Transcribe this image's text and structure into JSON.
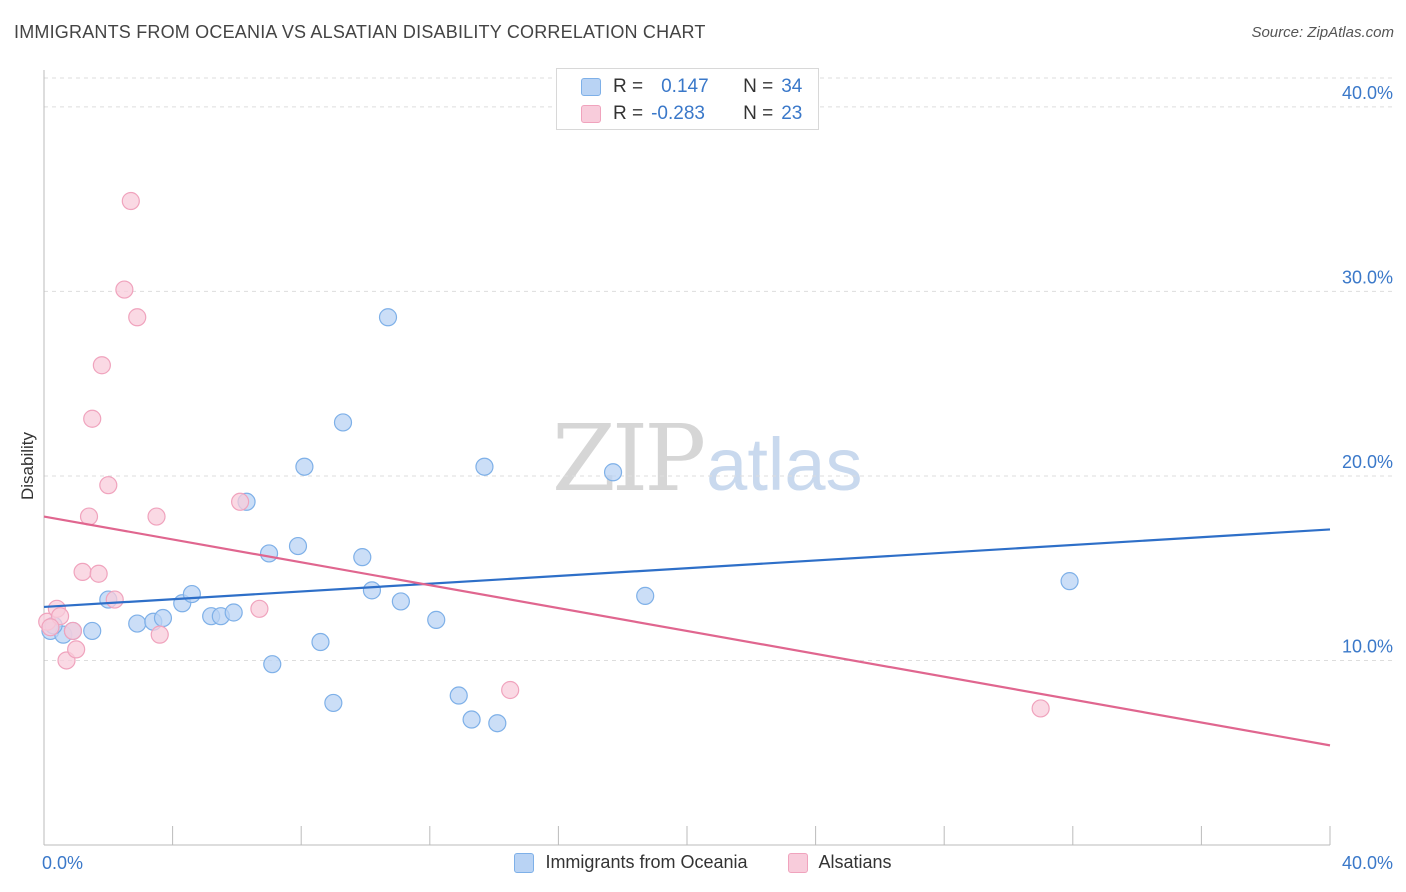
{
  "header": {
    "title": "IMMIGRANTS FROM OCEANIA VS ALSATIAN DISABILITY CORRELATION CHART",
    "source": "Source: ZipAtlas.com"
  },
  "legend": {
    "rows": [
      {
        "r_label": "R =",
        "r_value": "0.147",
        "n_label": "N =",
        "n_value": "34"
      },
      {
        "r_label": "R =",
        "r_value": "-0.283",
        "n_label": "N =",
        "n_value": "23"
      }
    ]
  },
  "watermark": {
    "zip": "ZIP",
    "atlas": "atlas"
  },
  "chart_data": {
    "type": "scatter",
    "xlabel": "",
    "ylabel": "Disability",
    "xlim": [
      0,
      40
    ],
    "ylim": [
      0,
      42
    ],
    "x_tick_labels": [
      "0.0%",
      "40.0%"
    ],
    "y_ticks": [
      10,
      20,
      30,
      40
    ],
    "y_tick_labels": [
      "10.0%",
      "20.0%",
      "30.0%",
      "40.0%"
    ],
    "grid": "horizontal dashed",
    "legend_position": "top-center",
    "series": [
      {
        "name": "Immigrants from Oceania",
        "color": "#7eb0e8",
        "fill": "#b9d3f4",
        "line_color": "#2e6fc8",
        "trend": {
          "x": [
            0,
            40
          ],
          "y": [
            12.9,
            17.1
          ]
        },
        "points": [
          [
            0.2,
            11.6
          ],
          [
            0.6,
            11.4
          ],
          [
            1.5,
            11.6
          ],
          [
            2.0,
            13.3
          ],
          [
            2.9,
            12.0
          ],
          [
            3.4,
            12.1
          ],
          [
            3.7,
            12.3
          ],
          [
            4.3,
            13.1
          ],
          [
            4.6,
            13.6
          ],
          [
            5.2,
            12.4
          ],
          [
            5.5,
            12.4
          ],
          [
            5.9,
            12.6
          ],
          [
            6.3,
            18.6
          ],
          [
            7.0,
            15.8
          ],
          [
            7.1,
            9.8
          ],
          [
            7.9,
            16.2
          ],
          [
            8.1,
            20.5
          ],
          [
            8.6,
            11.0
          ],
          [
            9.0,
            7.7
          ],
          [
            9.3,
            22.9
          ],
          [
            9.9,
            15.6
          ],
          [
            10.2,
            13.8
          ],
          [
            10.7,
            28.6
          ],
          [
            11.1,
            13.2
          ],
          [
            12.2,
            12.2
          ],
          [
            12.9,
            8.1
          ],
          [
            13.3,
            6.8
          ],
          [
            13.7,
            20.5
          ],
          [
            14.1,
            6.6
          ],
          [
            17.7,
            20.2
          ],
          [
            18.7,
            13.5
          ],
          [
            31.9,
            14.3
          ],
          [
            0.9,
            11.6
          ],
          [
            0.3,
            11.9
          ]
        ]
      },
      {
        "name": "Alsatians",
        "color": "#f0a3bd",
        "fill": "#f8ccdb",
        "line_color": "#e0668f",
        "trend": {
          "x": [
            0,
            40
          ],
          "y": [
            17.8,
            5.4
          ]
        },
        "points": [
          [
            0.1,
            12.1
          ],
          [
            0.4,
            12.8
          ],
          [
            0.5,
            12.4
          ],
          [
            0.7,
            10.0
          ],
          [
            0.9,
            11.6
          ],
          [
            1.0,
            10.6
          ],
          [
            1.2,
            14.8
          ],
          [
            1.4,
            17.8
          ],
          [
            1.5,
            23.1
          ],
          [
            1.7,
            14.7
          ],
          [
            1.8,
            26.0
          ],
          [
            2.0,
            19.5
          ],
          [
            2.2,
            13.3
          ],
          [
            2.5,
            30.1
          ],
          [
            2.7,
            34.9
          ],
          [
            2.9,
            28.6
          ],
          [
            3.5,
            17.8
          ],
          [
            3.6,
            11.4
          ],
          [
            6.1,
            18.6
          ],
          [
            6.7,
            12.8
          ],
          [
            14.5,
            8.4
          ],
          [
            31.0,
            7.4
          ],
          [
            0.2,
            11.8
          ]
        ]
      }
    ]
  }
}
